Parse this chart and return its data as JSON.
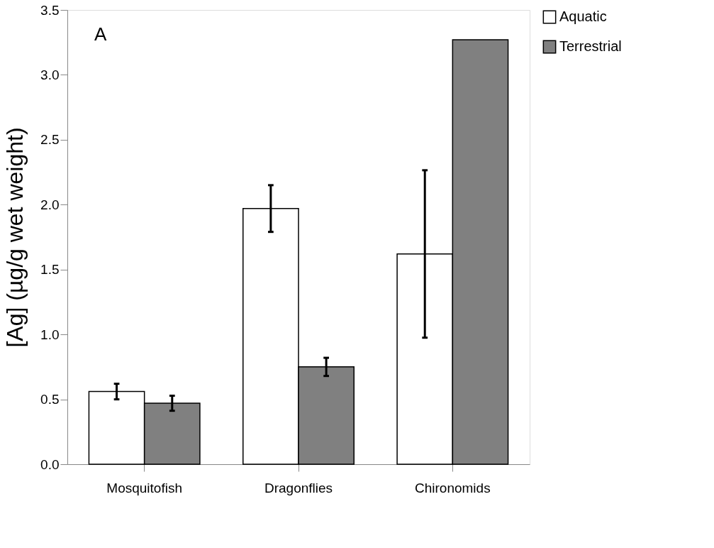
{
  "chart_data": {
    "type": "bar",
    "categories": [
      "Mosquitofish",
      "Dragonflies",
      "Chironomids"
    ],
    "series": [
      {
        "name": "Aquatic",
        "color": "#ffffff",
        "values": [
          0.56,
          1.97,
          1.62
        ],
        "errors": [
          0.06,
          0.18,
          0.645
        ]
      },
      {
        "name": "Terrestrial",
        "color": "#808080",
        "values": [
          0.47,
          0.75,
          3.27
        ],
        "errors": [
          0.058,
          0.07,
          null
        ]
      }
    ],
    "ylabel": "[Ag] (µg/g wet weight)",
    "ylim": [
      0,
      3.5
    ],
    "yticks": [
      {
        "value": 0,
        "label": "0.0"
      },
      {
        "value": 0.5,
        "label": "0.5"
      },
      {
        "value": 1,
        "label": "1.0"
      },
      {
        "value": 1.5,
        "label": "1.5"
      },
      {
        "value": 2,
        "label": "2.0"
      },
      {
        "value": 2.5,
        "label": "2.5"
      },
      {
        "value": 3,
        "label": "3.0"
      },
      {
        "value": 3.5,
        "label": "3.5"
      }
    ],
    "annotations": [
      "A"
    ],
    "grid": false,
    "legend": "right"
  }
}
